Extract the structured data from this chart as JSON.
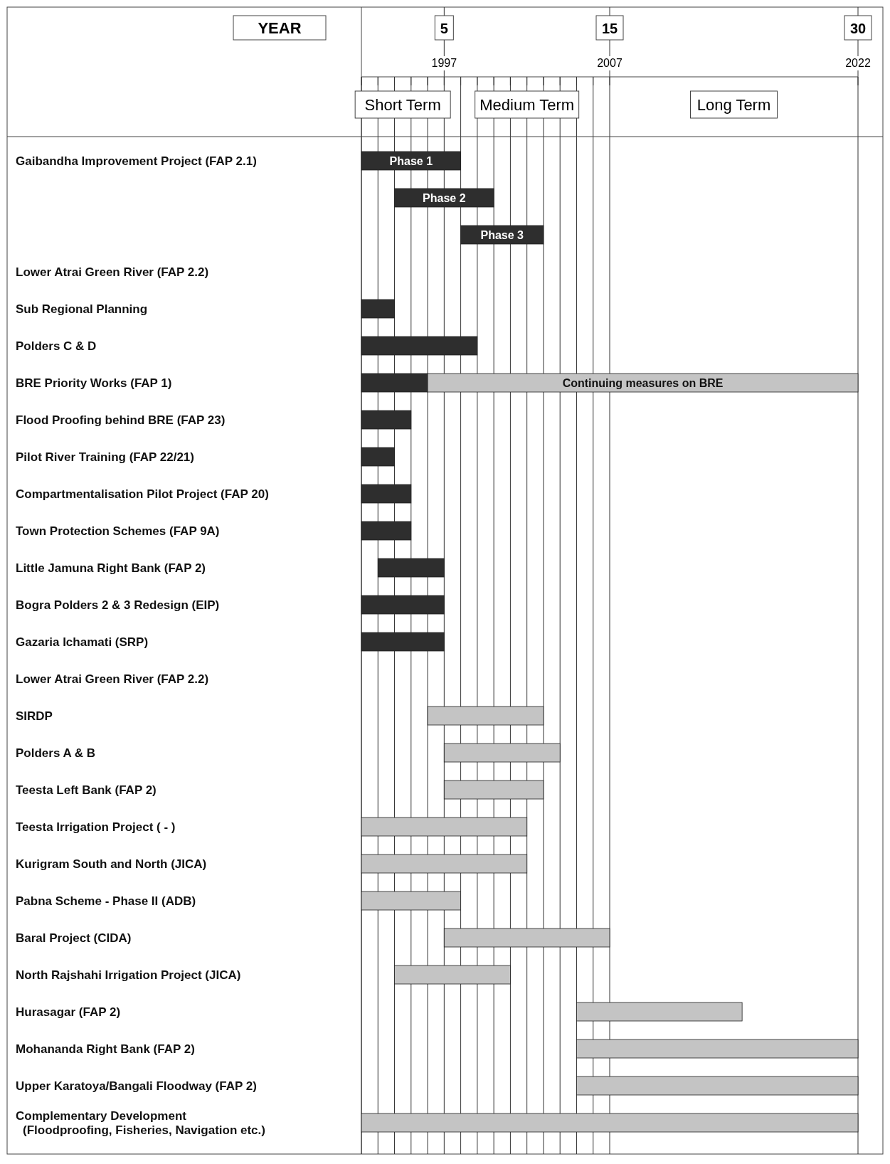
{
  "chart_data": {
    "type": "bar",
    "orientation": "horizontal",
    "x2label": "YEAR",
    "categories": [
      "Gaibandha Improvement Project (FAP 2.1)",
      null,
      null,
      "Lower Atrai Green River (FAP 2.2)",
      "Sub Regional Planning",
      "Polders C & D",
      "BRE Priority Works (FAP 1)",
      "Flood Proofing behind BRE (FAP 23)",
      "Pilot River Training (FAP 22/21)",
      "Compartmentalisation Pilot Project (FAP 20)",
      "Town Protection Schemes (FAP 9A)",
      "Little Jamuna Right Bank (FAP 2)",
      "Bogra Polders 2 & 3 Redesign (EIP)",
      "Gazaria Ichamati (SRP)",
      "Lower Atrai Green River (FAP 2.2)",
      "SIRDP",
      "Polders A & B",
      "Teesta Left Bank (FAP 2)",
      "Teesta Irrigation Project ( - )",
      "Kurigram South and North (JICA)",
      "Pabna Scheme - Phase II (ADB)",
      "Baral Project (CIDA)",
      "North Rajshahi Irrigation Project (JICA)",
      "Hurasagar (FAP 2)",
      "Mohananda Right Bank (FAP 2)",
      "Upper Karatoya/Bangali Floodway (FAP 2)",
      "Complementary Development\n(Floodproofing, Fisheries, Navigation etc.)"
    ],
    "series": [
      {
        "colors": [
          "#2e2e2e",
          "#2e2e2e",
          "#2e2e2e",
          null,
          "#2e2e2e",
          "#2e2e2e",
          "#2e2e2e",
          "#2e2e2e",
          "#2e2e2e",
          "#2e2e2e",
          "#2e2e2e",
          "#2e2e2e",
          "#2e2e2e",
          "#2e2e2e",
          null,
          "#c4c4c4",
          "#c4c4c4",
          "#c4c4c4",
          "#c4c4c4",
          "#c4c4c4",
          "#c4c4c4",
          "#c4c4c4",
          "#c4c4c4",
          "#c4c4c4",
          "#c4c4c4",
          "#c4c4c4",
          "#c4c4c4"
        ],
        "base": [
          1992,
          1994,
          1998,
          null,
          1992,
          1992,
          1992,
          1992,
          1992,
          1992,
          1992,
          1993,
          1992,
          1992,
          null,
          1996,
          1997,
          1997,
          1992,
          1992,
          1992,
          1997,
          1994,
          2005,
          2005,
          2005,
          1992
        ],
        "values": [
          6,
          6,
          5,
          null,
          2,
          7,
          4,
          3,
          2,
          3,
          3,
          4,
          5,
          5,
          null,
          7,
          7,
          6,
          10,
          10,
          6,
          10,
          7,
          10,
          17,
          17,
          30
        ],
        "value_labels": [
          "Phase 1",
          "Phase 2",
          "Phase 3",
          null,
          null,
          null,
          null,
          null,
          null,
          null,
          null,
          null,
          null,
          null,
          null,
          null,
          null,
          null,
          null,
          null,
          null,
          null,
          null,
          null,
          null,
          null,
          null
        ]
      },
      {
        "color": "#c4c4c4",
        "base": [
          null,
          null,
          null,
          null,
          null,
          null,
          1996,
          null,
          null,
          null,
          null,
          null,
          null,
          null,
          null,
          null,
          null,
          null,
          null,
          null,
          null,
          null,
          null,
          null,
          null,
          null,
          null
        ],
        "values": [
          null,
          null,
          null,
          null,
          null,
          null,
          26,
          null,
          null,
          null,
          null,
          null,
          null,
          null,
          null,
          null,
          null,
          null,
          null,
          null,
          null,
          null,
          null,
          null,
          null,
          null,
          null
        ],
        "value_labels": [
          null,
          null,
          null,
          null,
          null,
          null,
          "Continuing measures on BRE",
          null,
          null,
          null,
          null,
          null,
          null,
          null,
          null,
          null,
          null,
          null,
          null,
          null,
          null,
          null,
          null,
          null,
          null,
          null,
          null
        ]
      }
    ],
    "xlim": [
      1992,
      2022
    ],
    "xticks": [
      {
        "value": 1992,
        "label": null
      },
      {
        "value": 1993,
        "label": null
      },
      {
        "value": 1994,
        "label": null
      },
      {
        "value": 1995,
        "label": null
      },
      {
        "value": 1996,
        "label": null
      },
      1997,
      {
        "value": 1998,
        "label": null
      },
      {
        "value": 1999,
        "label": null
      },
      {
        "value": 2000,
        "label": null
      },
      {
        "value": 2001,
        "label": null
      },
      {
        "value": 2002,
        "label": null
      },
      {
        "value": 2003,
        "label": null
      },
      {
        "value": 2004,
        "label": null
      },
      {
        "value": 2005,
        "label": null
      },
      {
        "value": 2006,
        "label": null
      },
      2007,
      2022
    ],
    "x2lim": [
      0,
      30
    ],
    "x2ticks": [
      5,
      15,
      30
    ],
    "annotations": [
      "Short Term",
      "Medium Term",
      "Long Term"
    ],
    "grid": "x"
  }
}
